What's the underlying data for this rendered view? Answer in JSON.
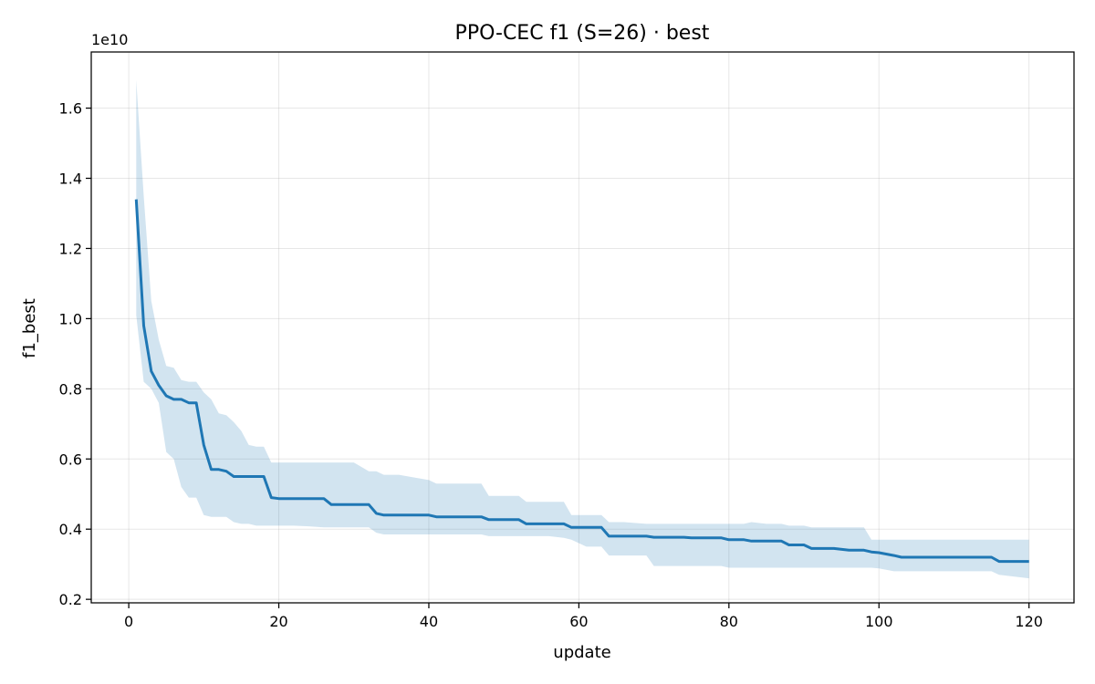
{
  "chart_data": {
    "type": "line",
    "title": "PPO-CEC f1 (S=26) · best",
    "xlabel": "update",
    "ylabel": "f1_best",
    "y_offset_label": "1e10",
    "y_scale_factor": 10000000000,
    "xlim": [
      -5,
      126
    ],
    "ylim": [
      0.19,
      1.76
    ],
    "x_ticks": [
      0,
      20,
      40,
      60,
      80,
      100,
      120
    ],
    "x_tick_labels": [
      "0",
      "20",
      "40",
      "60",
      "80",
      "100",
      "120"
    ],
    "y_ticks": [
      0.2,
      0.4,
      0.6,
      0.8,
      1.0,
      1.2,
      1.4,
      1.6
    ],
    "y_tick_labels": [
      "0.2",
      "0.4",
      "0.6",
      "0.8",
      "1.0",
      "1.2",
      "1.4",
      "1.6"
    ],
    "grid": true,
    "colors": {
      "line": "#1f77b4",
      "band": "#1f77b4"
    },
    "series": [
      {
        "x": [
          1,
          2,
          3,
          4,
          5,
          6,
          7,
          8,
          9,
          10,
          11,
          12,
          13,
          14,
          15,
          16,
          17,
          18,
          19,
          20,
          22,
          24,
          26,
          27,
          30,
          32,
          33,
          34,
          36,
          40,
          41,
          44,
          47,
          48,
          50,
          52,
          53,
          56,
          58,
          59,
          61,
          63,
          64,
          66,
          69,
          70,
          72,
          74,
          75,
          78,
          79,
          80,
          82,
          83,
          85,
          87,
          88,
          90,
          91,
          92,
          94,
          96,
          98,
          99,
          100,
          102,
          103,
          106,
          110,
          115,
          116,
          120
        ],
        "y": [
          1.34,
          0.98,
          0.85,
          0.81,
          0.78,
          0.77,
          0.77,
          0.76,
          0.76,
          0.64,
          0.57,
          0.57,
          0.565,
          0.55,
          0.55,
          0.55,
          0.55,
          0.55,
          0.49,
          0.487,
          0.487,
          0.487,
          0.487,
          0.47,
          0.47,
          0.47,
          0.445,
          0.44,
          0.44,
          0.44,
          0.435,
          0.435,
          0.435,
          0.427,
          0.427,
          0.427,
          0.415,
          0.415,
          0.415,
          0.405,
          0.405,
          0.405,
          0.38,
          0.38,
          0.38,
          0.377,
          0.377,
          0.377,
          0.375,
          0.375,
          0.375,
          0.37,
          0.37,
          0.366,
          0.366,
          0.366,
          0.355,
          0.355,
          0.345,
          0.345,
          0.345,
          0.34,
          0.34,
          0.335,
          0.333,
          0.325,
          0.32,
          0.32,
          0.32,
          0.32,
          0.308,
          0.308
        ],
        "y_upper": [
          1.68,
          1.35,
          1.05,
          0.94,
          0.865,
          0.86,
          0.825,
          0.82,
          0.82,
          0.79,
          0.77,
          0.73,
          0.725,
          0.705,
          0.68,
          0.64,
          0.635,
          0.635,
          0.59,
          0.59,
          0.59,
          0.59,
          0.59,
          0.59,
          0.59,
          0.565,
          0.565,
          0.555,
          0.555,
          0.54,
          0.53,
          0.53,
          0.53,
          0.495,
          0.495,
          0.495,
          0.478,
          0.478,
          0.478,
          0.44,
          0.44,
          0.44,
          0.42,
          0.42,
          0.415,
          0.415,
          0.415,
          0.415,
          0.415,
          0.415,
          0.415,
          0.415,
          0.415,
          0.42,
          0.415,
          0.415,
          0.41,
          0.41,
          0.405,
          0.405,
          0.405,
          0.405,
          0.405,
          0.37,
          0.37,
          0.37,
          0.37,
          0.37,
          0.37,
          0.37,
          0.37,
          0.37
        ],
        "y_lower": [
          1.01,
          0.82,
          0.8,
          0.76,
          0.62,
          0.6,
          0.52,
          0.49,
          0.49,
          0.44,
          0.435,
          0.435,
          0.435,
          0.42,
          0.415,
          0.415,
          0.41,
          0.41,
          0.41,
          0.41,
          0.41,
          0.408,
          0.405,
          0.405,
          0.405,
          0.405,
          0.39,
          0.385,
          0.385,
          0.385,
          0.385,
          0.385,
          0.385,
          0.38,
          0.38,
          0.38,
          0.38,
          0.38,
          0.375,
          0.37,
          0.35,
          0.35,
          0.325,
          0.325,
          0.325,
          0.295,
          0.295,
          0.295,
          0.295,
          0.295,
          0.295,
          0.29,
          0.29,
          0.29,
          0.29,
          0.29,
          0.29,
          0.29,
          0.29,
          0.29,
          0.29,
          0.29,
          0.29,
          0.29,
          0.288,
          0.28,
          0.28,
          0.28,
          0.28,
          0.28,
          0.27,
          0.26
        ]
      }
    ]
  }
}
